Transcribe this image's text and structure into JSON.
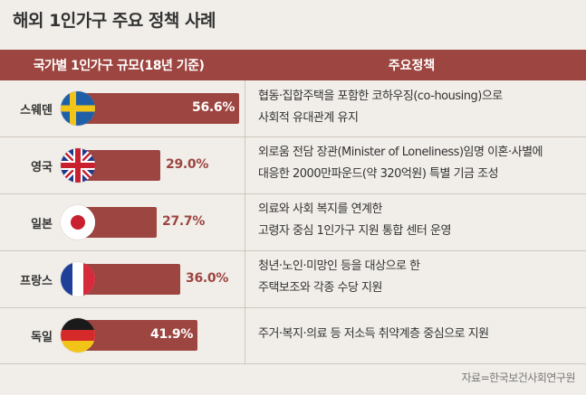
{
  "title": "해외 1인가구 주요 정책 사례",
  "header": {
    "left": "국가별 1인가구 규모(18년 기준)",
    "right": "주요정책"
  },
  "colors": {
    "accent": "#9d4540",
    "background": "#f1eee9"
  },
  "chart_data": {
    "type": "bar",
    "orientation": "horizontal",
    "title": "국가별 1인가구 규모(18년 기준)",
    "categories": [
      "스웨덴",
      "영국",
      "일본",
      "프랑스",
      "독일"
    ],
    "values": [
      56.6,
      29.0,
      27.7,
      36.0,
      41.9
    ],
    "value_labels": [
      "56.6%",
      "29.0%",
      "27.7%",
      "36.0%",
      "41.9%"
    ],
    "unit": "%"
  },
  "rows": [
    {
      "country": "스웨덴",
      "flag": "sweden-flag",
      "value_label": "56.6%",
      "policy_line1": "협동·집합주택을 포함한 코하우징(co-housing)으로",
      "policy_line2": "사회적 유대관계 유지"
    },
    {
      "country": "영국",
      "flag": "uk-flag",
      "value_label": "29.0%",
      "policy_line1": "외로움 전담 장관(Minister of Loneliness)임명 이혼·사별에",
      "policy_line2": "대응한 2000만파운드(약 320억원) 특별 기금 조성"
    },
    {
      "country": "일본",
      "flag": "japan-flag",
      "value_label": "27.7%",
      "policy_line1": "의료와 사회 복지를 연계한",
      "policy_line2": "고령자 중심 1인가구 지원 통합 센터 운영"
    },
    {
      "country": "프랑스",
      "flag": "france-flag",
      "value_label": "36.0%",
      "policy_line1": "청년·노인·미망인 등을 대상으로 한",
      "policy_line2": "주택보조와 각종 수당 지원"
    },
    {
      "country": "독일",
      "flag": "germany-flag",
      "value_label": "41.9%",
      "policy_line1": "주거·복지·의료 등 저소득 취약계층 중심으로 지원",
      "policy_line2": ""
    }
  ],
  "source": "자료=한국보건사회연구원"
}
